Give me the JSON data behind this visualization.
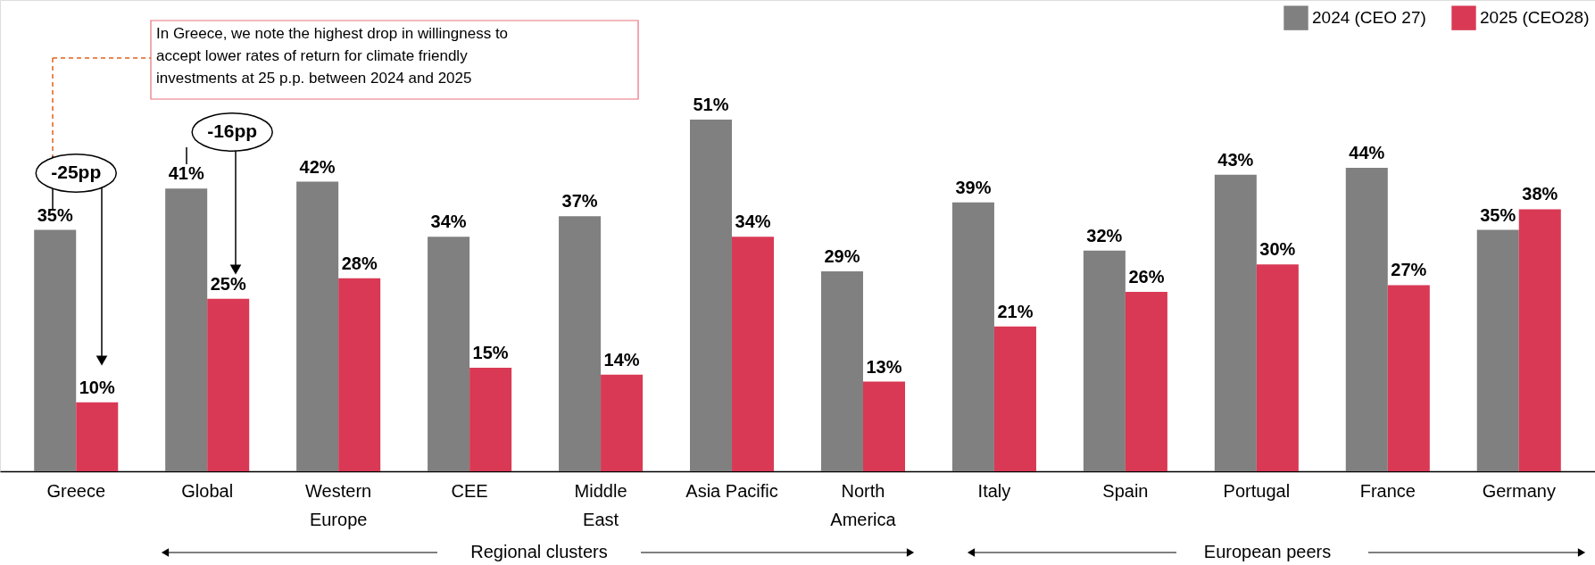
{
  "chart_data": {
    "type": "bar",
    "categories": [
      "Greece",
      "Global",
      "Western\nEurope",
      "CEE",
      "Middle\nEast",
      "Asia Pacific",
      "North\nAmerica",
      "Italy",
      "Spain",
      "Portugal",
      "France",
      "Germany"
    ],
    "series": [
      {
        "name": "2024 (CEO 27)",
        "color": "#808080",
        "values": [
          35,
          41,
          42,
          34,
          37,
          51,
          29,
          39,
          32,
          43,
          44,
          35
        ],
        "value_labels": [
          "35%",
          "41%",
          "42%",
          "34%",
          "37%",
          "51%",
          "29%",
          "39%",
          "32%",
          "43%",
          "44%",
          "35%"
        ]
      },
      {
        "name": "2025 (CEO28)",
        "color": "#d93954",
        "values": [
          10,
          25,
          28,
          15,
          14,
          34,
          13,
          21,
          26,
          30,
          27,
          38
        ],
        "value_labels": [
          "10%",
          "25%",
          "28%",
          "15%",
          "14%",
          "34%",
          "13%",
          "21%",
          "26%",
          "30%",
          "27%",
          "38%"
        ]
      }
    ],
    "legend": "top right",
    "grid": false,
    "annotations": [
      "In Greece, we note the highest drop in willingness to accept lower rates of return for climate friendly investments at 25 p.p. between 2024 and 2025",
      "-25pp",
      "-16pp",
      "Regional clusters",
      "European peers"
    ]
  }
}
